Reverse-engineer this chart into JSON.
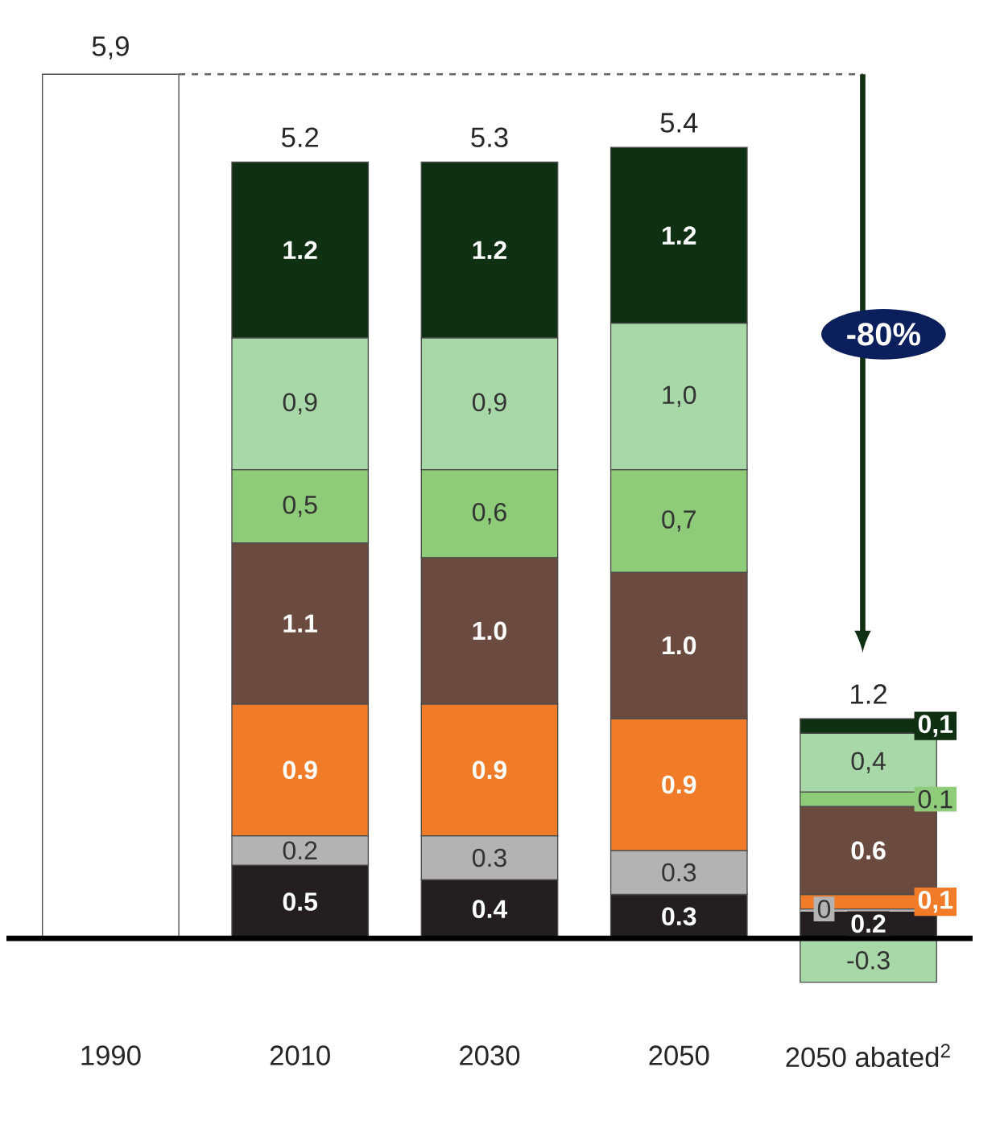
{
  "chart_data": {
    "type": "bar",
    "stacked": true,
    "categories": [
      "1990",
      "2010",
      "2030",
      "2050",
      "2050 abated$^{2}$"
    ],
    "series": [
      {
        "color": "#ffffff",
        "values": [
          5.9,
          null,
          null,
          null,
          null
        ]
      },
      {
        "color": "#a8d8a8",
        "values": [
          null,
          null,
          null,
          null,
          -0.3
        ],
        "value_labels": [
          null,
          null,
          null,
          null,
          "-0.3"
        ]
      },
      {
        "color": "#231f20",
        "values": [
          null,
          0.5,
          0.4,
          0.3,
          0.2
        ],
        "value_labels": [
          null,
          "0.5",
          "0.4",
          "0.3",
          "0.2"
        ]
      },
      {
        "color": "#b3b3b3",
        "values": [
          null,
          0.2,
          0.3,
          0.3,
          0
        ],
        "value_labels": [
          null,
          "0.2",
          "0.3",
          "0.3",
          "0"
        ]
      },
      {
        "color": "#f07c2a",
        "values": [
          null,
          0.9,
          0.9,
          0.9,
          0.1
        ],
        "value_labels": [
          null,
          "0.9",
          "0.9",
          "0.9",
          "0,1"
        ]
      },
      {
        "color": "#6b4a3f",
        "values": [
          null,
          1.1,
          1.0,
          1.0,
          0.6
        ],
        "value_labels": [
          null,
          "1.1",
          "1.0",
          "1.0",
          "0.6"
        ]
      },
      {
        "color": "#8fcc7a",
        "values": [
          null,
          0.5,
          0.6,
          0.7,
          0.1
        ],
        "value_labels": [
          null,
          "0,5",
          "0,6",
          "0,7",
          "0.1"
        ]
      },
      {
        "color": "#a8d8a8",
        "values": [
          null,
          0.9,
          0.9,
          1.0,
          0.4
        ],
        "value_labels": [
          null,
          "0,9",
          "0,9",
          "1,0",
          "0,4"
        ]
      },
      {
        "color": "#0f3012",
        "values": [
          null,
          1.2,
          1.2,
          1.2,
          0.1
        ],
        "value_labels": [
          null,
          "1.2",
          "1.2",
          "1.2",
          "0,1"
        ]
      }
    ],
    "totals": [
      "5,9",
      "5.2",
      "5.3",
      "5.4",
      "1.2"
    ],
    "annotations": [
      "-80%"
    ]
  }
}
